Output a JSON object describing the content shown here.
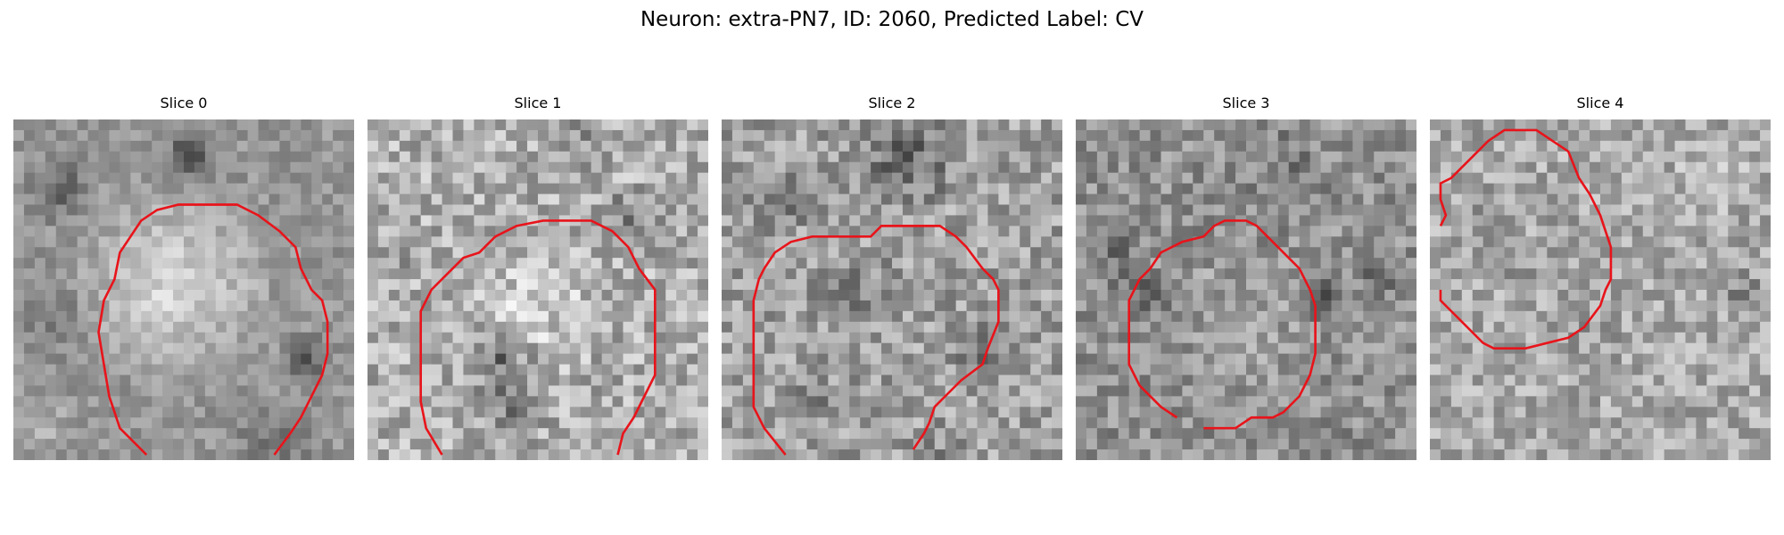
{
  "figure": {
    "title": "Neuron: extra-PN7, ID: 2060, Predicted Label: CV"
  },
  "colors": {
    "contour": "#e8141b",
    "background": "#ffffff"
  },
  "panels": [
    {
      "title": "Slice 0"
    },
    {
      "title": "Slice 1"
    },
    {
      "title": "Slice 2"
    },
    {
      "title": "Slice 3"
    },
    {
      "title": "Slice 4"
    }
  ]
}
